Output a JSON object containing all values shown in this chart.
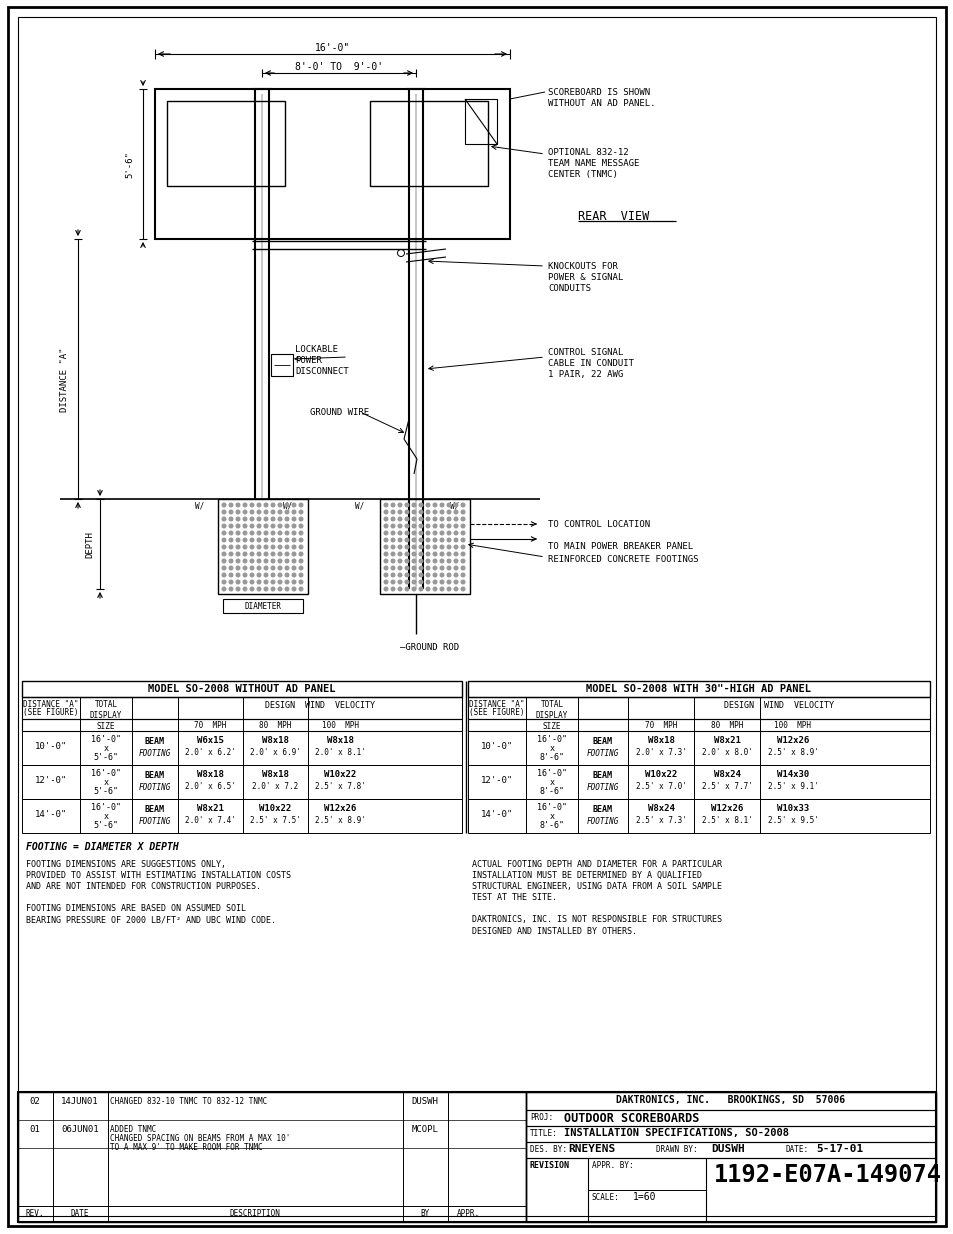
{
  "page_bg": "#ffffff",
  "line_color": "#000000",
  "text_color": "#000000",
  "title_company": "DAKTRONICS, INC.   BROOKINGS, SD  57006",
  "title_proj": "OUTDOOR SCOREBOARDS",
  "title_title": "INSTALLATION SPECIFICATIONS, SO-2008",
  "title_des": "RNEYENS",
  "title_drawn": "DUSWH",
  "title_date": "5-17-01",
  "title_scale": "1=60",
  "title_drawing_no": "1192-E07A-149074",
  "rev_rows": [
    [
      "02",
      "14JUN01",
      "CHANGED 832-10 TNMC TO 832-12 TNMC",
      "DUSWH",
      ""
    ],
    [
      "01",
      "06JUN01",
      "ADDED TNMC\nCHANGED SPACING ON BEAMS FROM A MAX 10'\nTO A MAX 9' TO MAKE ROOM FOR TNMC",
      "MCOPL",
      ""
    ]
  ],
  "note1_left": "FOOTING DIMENSIONS ARE SUGGESTIONS ONLY,\nPROVIDED TO ASSIST WITH ESTIMATING INSTALLATION COSTS\nAND ARE NOT INTENDED FOR CONSTRUCTION PURPOSES.\n\nFOOTING DIMENSIONS ARE BASED ON ASSUMED SOIL\nBEARING PRESSURE OF 2000 LB/FT² AND UBC WIND CODE.",
  "note1_right": "ACTUAL FOOTING DEPTH AND DIAMETER FOR A PARTICULAR\nINSTALLATION MUST BE DETERMINED BY A QUALIFIED\nSTRUCTURAL ENGINEER, USING DATA FROM A SOIL SAMPLE\nTEST AT THE SITE.\n\nDAKTRONICS, INC. IS NOT RESPONSIBLE FOR STRUCTURES\nDESIGNED AND INSTALLED BY OTHERS.",
  "footing_note": "FOOTING = DIAMETER X DEPTH",
  "table_left_title": "MODEL SO-2008 WITHOUT AD PANEL",
  "table_right_title": "MODEL SO-2008 WITH 30\"-HIGH AD PANEL",
  "table_left_data": [
    [
      "10'-0\"",
      "16'-0\"\n x\n5'-6\"",
      "BEAM\nFOOTING",
      "W6x15\n2.0' x 6.2'",
      "W8x18\n2.0' x 6.9'",
      "W8x18\n2.0' x 8.1'"
    ],
    [
      "12'-0\"",
      "16'-0\"\n x\n5'-6\"",
      "BEAM\nFOOTING",
      "W8x18\n2.0' x 6.5'",
      "W8x18\n2.0' x 7.2",
      "W10x22\n2.5' x 7.8'"
    ],
    [
      "14'-0\"",
      "16'-0\"\n x\n5'-6\"",
      "BEAM\nFOOTING",
      "W8x21\n2.0' x 7.4'",
      "W10x22\n2.5' x 7.5'",
      "W12x26\n2.5' x 8.9'"
    ]
  ],
  "table_right_data": [
    [
      "10'-0\"",
      "16'-0\"\n x\n8'-6\"",
      "BEAM\nFOOTING",
      "W8x18\n2.0' x 7.3'",
      "W8x21\n2.0' x 8.0'",
      "W12x26\n2.5' x 8.9'"
    ],
    [
      "12'-0\"",
      "16'-0\"\n x\n8'-6\"",
      "BEAM\nFOOTING",
      "W10x22\n2.5' x 7.0'",
      "W8x24\n2.5' x 7.7'",
      "W14x30\n2.5' x 9.1'"
    ],
    [
      "14'-0\"",
      "16'-0\"\n x\n8'-6\"",
      "BEAM\nFOOTING",
      "W8x24\n2.5' x 7.3'",
      "W12x26\n2.5' x 8.1'",
      "W10x33\n2.5' x 9.5'"
    ]
  ]
}
